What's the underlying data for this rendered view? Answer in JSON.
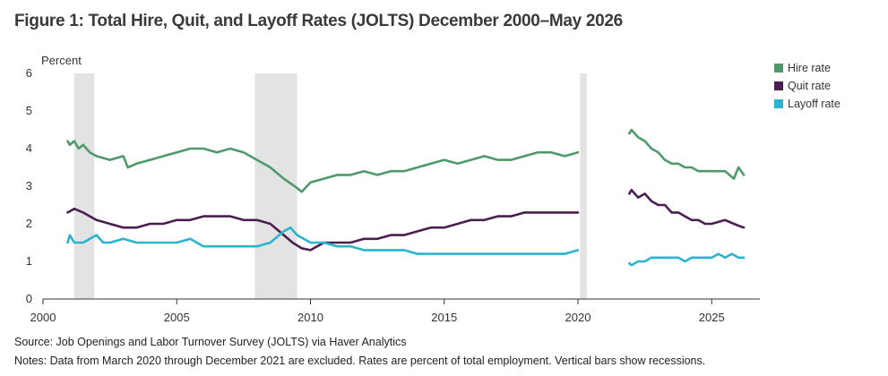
{
  "title": "Figure 1: Total Hire, Quit, and Layoff Rates (JOLTS) December 2000–May 2026",
  "source": "Source: Job Openings and Labor Turnover Survey (JOLTS) via Haver Analytics",
  "notes": "Notes: Data from March 2020 through December 2021 are excluded. Rates are percent of total employment. Vertical bars show recessions.",
  "colors": {
    "hire": "#4e9a6a",
    "quit": "#4b1e52",
    "layoff": "#2bb3cf",
    "recession": "#e3e3e3",
    "axis": "#333333"
  },
  "chart_data": {
    "type": "line",
    "ylabel": "Percent",
    "xlim": [
      2000,
      2026.8
    ],
    "ylim": [
      0,
      6
    ],
    "xticks": [
      2000,
      2005,
      2010,
      2015,
      2020,
      2025
    ],
    "yticks": [
      0,
      1,
      2,
      3,
      4,
      5,
      6
    ],
    "legend_position": "right",
    "recessions": [
      [
        2001.17,
        2001.92
      ],
      [
        2007.92,
        2009.5
      ],
      [
        2020.08,
        2020.33
      ]
    ],
    "series": [
      {
        "name": "Hire rate",
        "key": "hire",
        "segments": [
          [
            [
              2000.92,
              4.2
            ],
            [
              2001.0,
              4.1
            ],
            [
              2001.17,
              4.2
            ],
            [
              2001.33,
              4.0
            ],
            [
              2001.5,
              4.1
            ],
            [
              2001.75,
              3.9
            ],
            [
              2002.0,
              3.8
            ],
            [
              2002.5,
              3.7
            ],
            [
              2003.0,
              3.8
            ],
            [
              2003.17,
              3.5
            ],
            [
              2003.5,
              3.6
            ],
            [
              2004.0,
              3.7
            ],
            [
              2004.5,
              3.8
            ],
            [
              2005.0,
              3.9
            ],
            [
              2005.5,
              4.0
            ],
            [
              2006.0,
              4.0
            ],
            [
              2006.5,
              3.9
            ],
            [
              2007.0,
              4.0
            ],
            [
              2007.5,
              3.9
            ],
            [
              2008.0,
              3.7
            ],
            [
              2008.5,
              3.5
            ],
            [
              2009.0,
              3.2
            ],
            [
              2009.5,
              2.95
            ],
            [
              2009.67,
              2.85
            ],
            [
              2010.0,
              3.1
            ],
            [
              2010.5,
              3.2
            ],
            [
              2011.0,
              3.3
            ],
            [
              2011.5,
              3.3
            ],
            [
              2012.0,
              3.4
            ],
            [
              2012.5,
              3.3
            ],
            [
              2013.0,
              3.4
            ],
            [
              2013.5,
              3.4
            ],
            [
              2014.0,
              3.5
            ],
            [
              2014.5,
              3.6
            ],
            [
              2015.0,
              3.7
            ],
            [
              2015.5,
              3.6
            ],
            [
              2016.0,
              3.7
            ],
            [
              2016.5,
              3.8
            ],
            [
              2017.0,
              3.7
            ],
            [
              2017.5,
              3.7
            ],
            [
              2018.0,
              3.8
            ],
            [
              2018.5,
              3.9
            ],
            [
              2019.0,
              3.9
            ],
            [
              2019.5,
              3.8
            ],
            [
              2020.0,
              3.9
            ]
          ],
          [
            [
              2021.92,
              4.4
            ],
            [
              2022.0,
              4.5
            ],
            [
              2022.25,
              4.3
            ],
            [
              2022.5,
              4.2
            ],
            [
              2022.75,
              4.0
            ],
            [
              2023.0,
              3.9
            ],
            [
              2023.25,
              3.7
            ],
            [
              2023.5,
              3.6
            ],
            [
              2023.75,
              3.6
            ],
            [
              2024.0,
              3.5
            ],
            [
              2024.25,
              3.5
            ],
            [
              2024.5,
              3.4
            ],
            [
              2025.0,
              3.4
            ],
            [
              2025.5,
              3.4
            ],
            [
              2025.83,
              3.2
            ],
            [
              2026.0,
              3.5
            ],
            [
              2026.2,
              3.3
            ]
          ]
        ]
      },
      {
        "name": "Quit rate",
        "key": "quit",
        "segments": [
          [
            [
              2000.92,
              2.3
            ],
            [
              2001.17,
              2.4
            ],
            [
              2001.5,
              2.3
            ],
            [
              2001.75,
              2.2
            ],
            [
              2002.0,
              2.1
            ],
            [
              2002.5,
              2.0
            ],
            [
              2003.0,
              1.9
            ],
            [
              2003.5,
              1.9
            ],
            [
              2004.0,
              2.0
            ],
            [
              2004.5,
              2.0
            ],
            [
              2005.0,
              2.1
            ],
            [
              2005.5,
              2.1
            ],
            [
              2006.0,
              2.2
            ],
            [
              2006.5,
              2.2
            ],
            [
              2007.0,
              2.2
            ],
            [
              2007.5,
              2.1
            ],
            [
              2008.0,
              2.1
            ],
            [
              2008.5,
              2.0
            ],
            [
              2009.0,
              1.7
            ],
            [
              2009.33,
              1.5
            ],
            [
              2009.67,
              1.35
            ],
            [
              2010.0,
              1.3
            ],
            [
              2010.5,
              1.5
            ],
            [
              2011.0,
              1.5
            ],
            [
              2011.5,
              1.5
            ],
            [
              2012.0,
              1.6
            ],
            [
              2012.5,
              1.6
            ],
            [
              2013.0,
              1.7
            ],
            [
              2013.5,
              1.7
            ],
            [
              2014.0,
              1.8
            ],
            [
              2014.5,
              1.9
            ],
            [
              2015.0,
              1.9
            ],
            [
              2015.5,
              2.0
            ],
            [
              2016.0,
              2.1
            ],
            [
              2016.5,
              2.1
            ],
            [
              2017.0,
              2.2
            ],
            [
              2017.5,
              2.2
            ],
            [
              2018.0,
              2.3
            ],
            [
              2018.5,
              2.3
            ],
            [
              2019.0,
              2.3
            ],
            [
              2019.5,
              2.3
            ],
            [
              2020.0,
              2.3
            ]
          ],
          [
            [
              2021.92,
              2.8
            ],
            [
              2022.0,
              2.9
            ],
            [
              2022.25,
              2.7
            ],
            [
              2022.5,
              2.8
            ],
            [
              2022.75,
              2.6
            ],
            [
              2023.0,
              2.5
            ],
            [
              2023.25,
              2.5
            ],
            [
              2023.5,
              2.3
            ],
            [
              2023.75,
              2.3
            ],
            [
              2024.0,
              2.2
            ],
            [
              2024.25,
              2.1
            ],
            [
              2024.5,
              2.1
            ],
            [
              2024.75,
              2.0
            ],
            [
              2025.0,
              2.0
            ],
            [
              2025.5,
              2.1
            ],
            [
              2025.83,
              2.0
            ],
            [
              2026.0,
              1.95
            ],
            [
              2026.2,
              1.9
            ]
          ]
        ]
      },
      {
        "name": "Layoff rate",
        "key": "layoff",
        "segments": [
          [
            [
              2000.92,
              1.5
            ],
            [
              2001.0,
              1.7
            ],
            [
              2001.17,
              1.5
            ],
            [
              2001.5,
              1.5
            ],
            [
              2001.75,
              1.6
            ],
            [
              2002.0,
              1.7
            ],
            [
              2002.25,
              1.5
            ],
            [
              2002.5,
              1.5
            ],
            [
              2003.0,
              1.6
            ],
            [
              2003.5,
              1.5
            ],
            [
              2004.0,
              1.5
            ],
            [
              2004.5,
              1.5
            ],
            [
              2005.0,
              1.5
            ],
            [
              2005.5,
              1.6
            ],
            [
              2006.0,
              1.4
            ],
            [
              2006.5,
              1.4
            ],
            [
              2007.0,
              1.4
            ],
            [
              2007.5,
              1.4
            ],
            [
              2008.0,
              1.4
            ],
            [
              2008.5,
              1.5
            ],
            [
              2009.0,
              1.8
            ],
            [
              2009.25,
              1.9
            ],
            [
              2009.5,
              1.7
            ],
            [
              2009.75,
              1.6
            ],
            [
              2010.0,
              1.5
            ],
            [
              2010.5,
              1.5
            ],
            [
              2011.0,
              1.4
            ],
            [
              2011.5,
              1.4
            ],
            [
              2012.0,
              1.3
            ],
            [
              2012.5,
              1.3
            ],
            [
              2013.0,
              1.3
            ],
            [
              2013.5,
              1.3
            ],
            [
              2014.0,
              1.2
            ],
            [
              2014.5,
              1.2
            ],
            [
              2015.0,
              1.2
            ],
            [
              2015.5,
              1.2
            ],
            [
              2016.0,
              1.2
            ],
            [
              2016.5,
              1.2
            ],
            [
              2017.0,
              1.2
            ],
            [
              2017.5,
              1.2
            ],
            [
              2018.0,
              1.2
            ],
            [
              2018.5,
              1.2
            ],
            [
              2019.0,
              1.2
            ],
            [
              2019.5,
              1.2
            ],
            [
              2020.0,
              1.3
            ]
          ],
          [
            [
              2021.92,
              0.95
            ],
            [
              2022.0,
              0.9
            ],
            [
              2022.25,
              1.0
            ],
            [
              2022.5,
              1.0
            ],
            [
              2022.75,
              1.1
            ],
            [
              2023.0,
              1.1
            ],
            [
              2023.25,
              1.1
            ],
            [
              2023.5,
              1.1
            ],
            [
              2023.75,
              1.1
            ],
            [
              2024.0,
              1.0
            ],
            [
              2024.25,
              1.1
            ],
            [
              2024.5,
              1.1
            ],
            [
              2024.75,
              1.1
            ],
            [
              2025.0,
              1.1
            ],
            [
              2025.25,
              1.2
            ],
            [
              2025.5,
              1.1
            ],
            [
              2025.75,
              1.2
            ],
            [
              2026.0,
              1.1
            ],
            [
              2026.2,
              1.1
            ]
          ]
        ]
      }
    ]
  }
}
